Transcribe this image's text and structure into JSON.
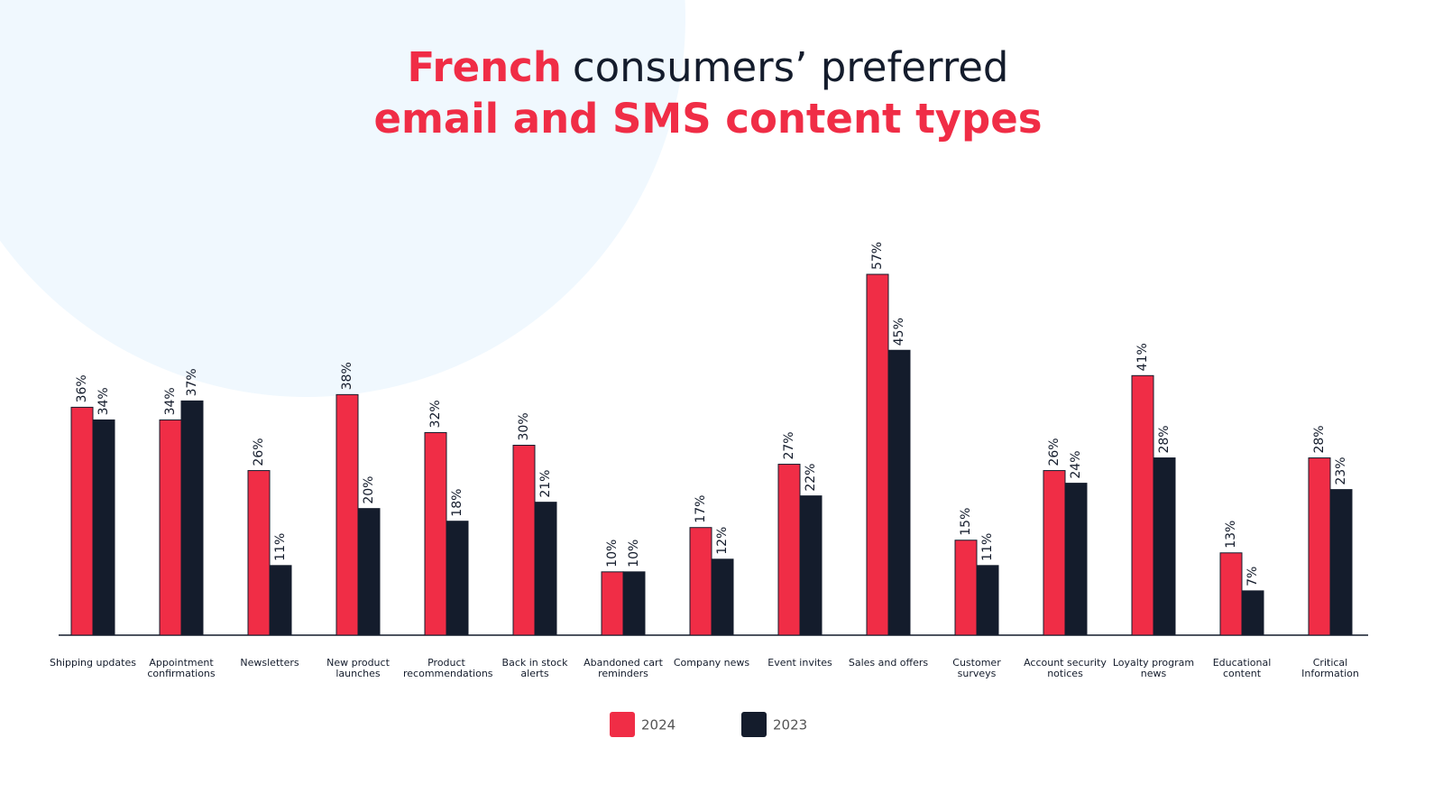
{
  "chart_data": {
    "type": "bar",
    "title": {
      "highlight": "French",
      "rest": "consumers’ preferred",
      "line2": "email and SMS content types"
    },
    "categories": [
      "Shipping updates",
      "Appointment confirmations",
      "Newsletters",
      "New product launches",
      "Product recommendations",
      "Back in stock alerts",
      "Abandoned cart reminders",
      "Company news",
      "Event invites",
      "Sales and offers",
      "Customer surveys",
      "Account security notices",
      "Loyalty program news",
      "Educational content",
      "Critical Information"
    ],
    "series": [
      {
        "name": "2024",
        "color": "#f02d46",
        "values": [
          36,
          34,
          26,
          38,
          32,
          30,
          10,
          17,
          27,
          57,
          15,
          26,
          41,
          13,
          28
        ],
        "value_labels": [
          "36%",
          "34%",
          "26%",
          "38%",
          "32%",
          "30%",
          "10%",
          "17%",
          "27%",
          "57%",
          "15%",
          "26%",
          "41%",
          "13%",
          "28%"
        ]
      },
      {
        "name": "2023",
        "color": "#141c2c",
        "values": [
          34,
          37,
          11,
          20,
          18,
          21,
          10,
          12,
          22,
          45,
          11,
          24,
          28,
          7,
          23
        ],
        "value_labels": [
          "34%",
          "37%",
          "11%",
          "20%",
          "18%",
          "21%",
          "10%",
          "12%",
          "22%",
          "45%",
          "11%",
          "24%",
          "28%",
          "7%",
          "23%"
        ]
      }
    ],
    "ylim": [
      0,
      60
    ]
  }
}
